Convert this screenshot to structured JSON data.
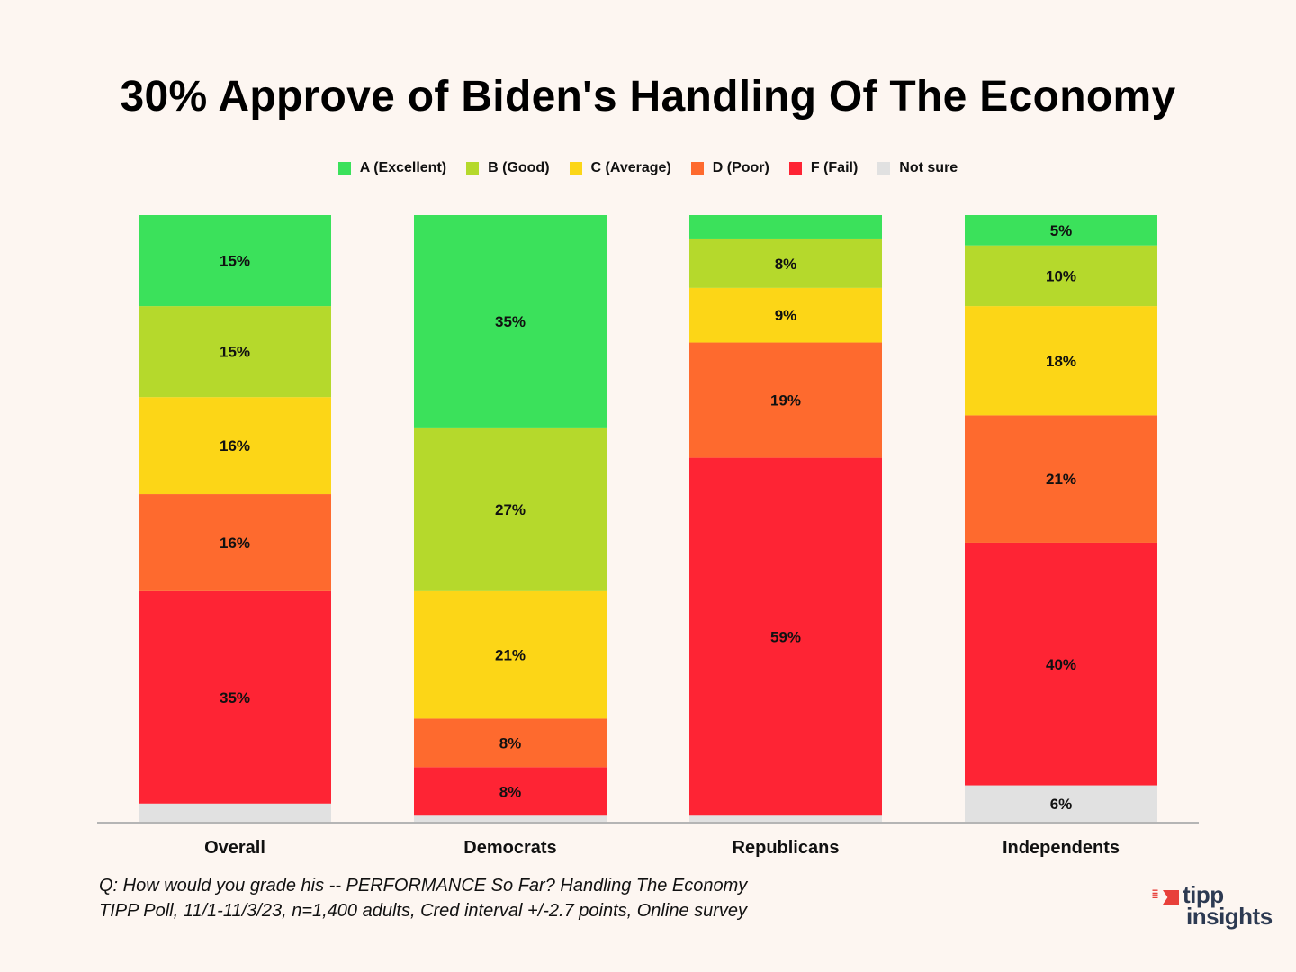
{
  "chart_data": {
    "type": "bar",
    "stacked": true,
    "title": "30% Approve of Biden's Handling Of The Economy",
    "xlabel": "",
    "ylabel": "",
    "ylim": [
      0,
      100
    ],
    "grid": false,
    "legend_position": "top-center",
    "categories": [
      "Overall",
      "Democrats",
      "Republicans",
      "Independents"
    ],
    "series": [
      {
        "name": "A (Excellent)",
        "color": "#3be15b",
        "values": [
          15,
          35,
          4,
          5
        ],
        "labels": [
          "15%",
          "35%",
          "",
          "5%"
        ]
      },
      {
        "name": "B (Good)",
        "color": "#b5d92c",
        "values": [
          15,
          27,
          8,
          10
        ],
        "labels": [
          "15%",
          "27%",
          "8%",
          "10%"
        ]
      },
      {
        "name": "C (Average)",
        "color": "#fcd617",
        "values": [
          16,
          21,
          9,
          18
        ],
        "labels": [
          "16%",
          "21%",
          "9%",
          "18%"
        ]
      },
      {
        "name": "D (Poor)",
        "color": "#fe6a2e",
        "values": [
          16,
          8,
          19,
          21
        ],
        "labels": [
          "16%",
          "8%",
          "19%",
          "21%"
        ]
      },
      {
        "name": "F (Fail)",
        "color": "#fe2434",
        "values": [
          35,
          8,
          59,
          40
        ],
        "labels": [
          "35%",
          "8%",
          "59%",
          "40%"
        ]
      },
      {
        "name": "Not sure",
        "color": "#e1e1e1",
        "values": [
          3,
          1,
          1,
          6
        ],
        "labels": [
          "",
          "",
          "",
          "6%"
        ]
      }
    ]
  },
  "footer": {
    "question": "Q:  How would you grade his -- PERFORMANCE So Far? Handling The Economy",
    "source": "TIPP Poll, 11/1-11/3/23, n=1,400 adults, Cred interval +/-2.7 points, Online survey"
  },
  "logo": {
    "line1": "tipp",
    "line2": "insights"
  }
}
